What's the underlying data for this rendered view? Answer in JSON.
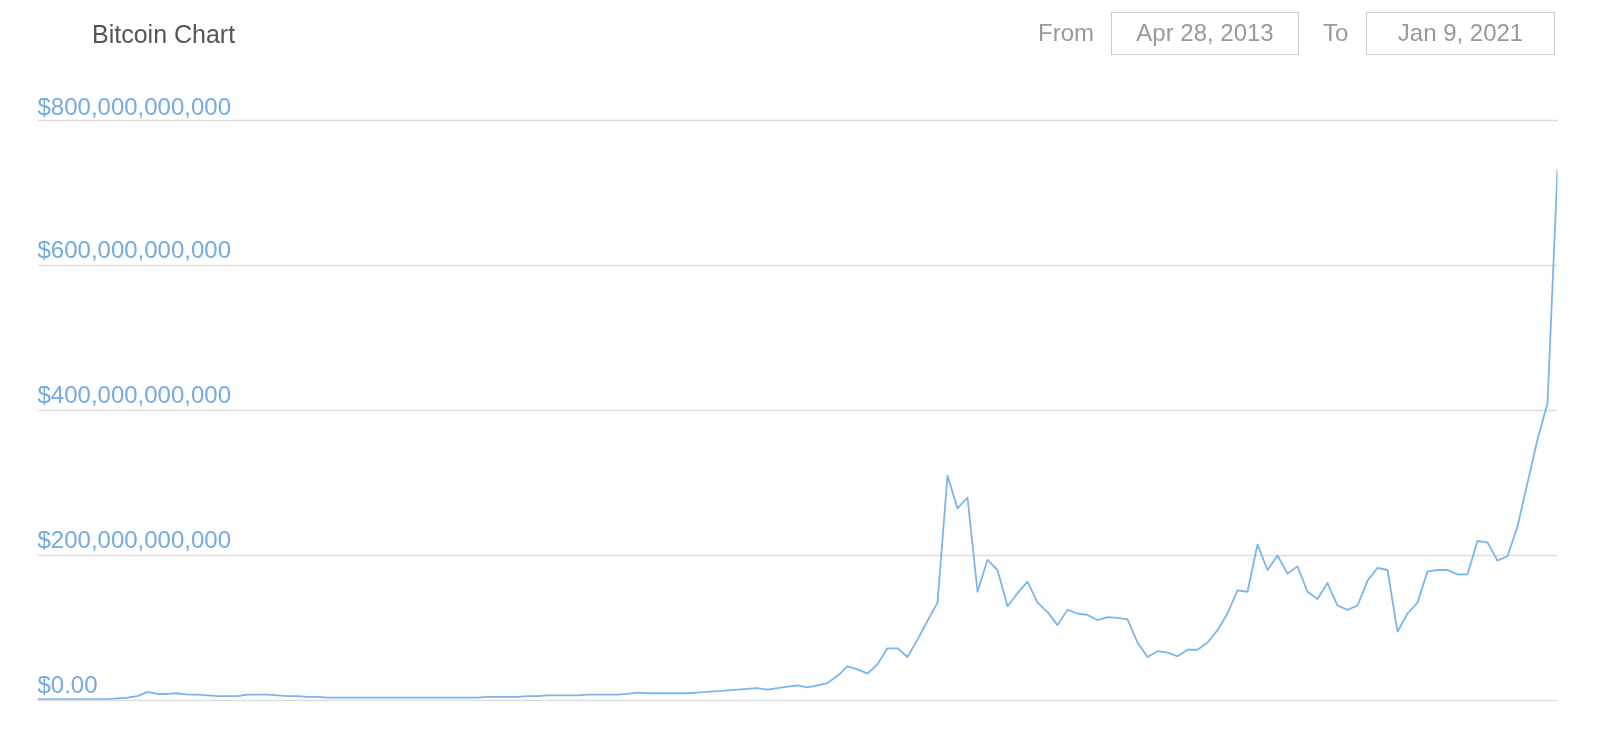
{
  "chart_data": {
    "type": "line",
    "title": "Bitcoin Chart",
    "annotations": [
      "From",
      "Apr 28, 2013",
      "To",
      "Jan 9, 2021"
    ],
    "categories": [
      null,
      null,
      null,
      null,
      null,
      null,
      null,
      null,
      null,
      null,
      null,
      null,
      null,
      null,
      null,
      null,
      null,
      null,
      null,
      null,
      null,
      null,
      null,
      null,
      null,
      null,
      null,
      null,
      null,
      null,
      null,
      null,
      null,
      null,
      null,
      null,
      null,
      null,
      null,
      null,
      null,
      null,
      null,
      null,
      null,
      null,
      null,
      null,
      null,
      null,
      null,
      null,
      null,
      null,
      null,
      null,
      null,
      null,
      null,
      null,
      null,
      null,
      null,
      null,
      null,
      null,
      null,
      null,
      null,
      null,
      null,
      null,
      null,
      null,
      null,
      null,
      null,
      null,
      null,
      null,
      null,
      null,
      null,
      null,
      null,
      null,
      null,
      null,
      null,
      null,
      null,
      null,
      null,
      null,
      null,
      null,
      null,
      null,
      null,
      null,
      null,
      null,
      null,
      null,
      null,
      null,
      null,
      null,
      null,
      null,
      null,
      null,
      null,
      null,
      null,
      null,
      null,
      null,
      null,
      null,
      null,
      null,
      null,
      null,
      null,
      null,
      null,
      null,
      null,
      null,
      null,
      null,
      null,
      null,
      null,
      null,
      null,
      null,
      null,
      null,
      null,
      null,
      null,
      null,
      null,
      null,
      null,
      null,
      null,
      null,
      null,
      null,
      null
    ],
    "series": [
      {
        "color": "#7cb5ec",
        "values": [
          2000000000.0,
          2000000000.0,
          2000000000.0,
          2000000000.0,
          2000000000.0,
          2000000000.0,
          2000000000.0,
          2000000000.0,
          3000000000.0,
          4000000000.0,
          6000000000.0,
          12000000000.0,
          9000000000.0,
          9000000000.0,
          10000000000.0,
          8000000000.0,
          8000000000.0,
          7000000000.0,
          6000000000.0,
          6000000000.0,
          6000000000.0,
          8000000000.0,
          8000000000.0,
          8000000000.0,
          7000000000.0,
          6000000000.0,
          6000000000.0,
          5000000000.0,
          5000000000.0,
          4000000000.0,
          4000000000.0,
          4000000000.0,
          4000000000.0,
          4000000000.0,
          4000000000.0,
          4000000000.0,
          4000000000.0,
          4000000000.0,
          4000000000.0,
          4000000000.0,
          4000000000.0,
          4000000000.0,
          4000000000.0,
          4000000000.0,
          4000000000.0,
          5000000000.0,
          5000000000.0,
          5000000000.0,
          5000000000.0,
          6000000000.0,
          6000000000.0,
          7000000000.0,
          7000000000.0,
          7000000000.0,
          7000000000.0,
          8000000000.0,
          8000000000.0,
          8000000000.0,
          8000000000.0,
          9000000000.0,
          11000000000.0,
          10000000000.0,
          10000000000.0,
          10000000000.0,
          10000000000.0,
          10000000000.0,
          11000000000.0,
          12000000000.0,
          13000000000.0,
          14000000000.0,
          15000000000.0,
          16000000000.0,
          17000000000.0,
          15000000000.0,
          17000000000.0,
          19000000000.0,
          21000000000.0,
          18000000000.0,
          21000000000.0,
          24000000000.0,
          34000000000.0,
          47000000000.0,
          43000000000.0,
          37000000000.0,
          50000000000.0,
          72000000000.0,
          72000000000.0,
          60000000000.0,
          84000000000.0,
          110000000000.0,
          135000000000.0,
          310000000000.0,
          265000000000.0,
          280000000000.0,
          150000000000.0,
          194000000000.0,
          180000000000.0,
          130000000000.0,
          148000000000.0,
          164000000000.0,
          135000000000.0,
          122000000000.0,
          104000000000.0,
          125000000000.0,
          120000000000.0,
          118000000000.0,
          111000000000.0,
          115000000000.0,
          114000000000.0,
          112000000000.0,
          80000000000.0,
          60000000000.0,
          68000000000.0,
          66000000000.0,
          61000000000.0,
          70000000000.0,
          70000000000.0,
          80000000000.0,
          97000000000.0,
          120000000000.0,
          152000000000.0,
          150000000000.0,
          215000000000.0,
          180000000000.0,
          200000000000.0,
          175000000000.0,
          185000000000.0,
          150000000000.0,
          140000000000.0,
          162000000000.0,
          131000000000.0,
          125000000000.0,
          131000000000.0,
          165000000000.0,
          183000000000.0,
          180000000000.0,
          95000000000.0,
          120000000000.0,
          135000000000.0,
          178000000000.0,
          180000000000.0,
          180000000000.0,
          174000000000.0,
          174000000000.0,
          220000000000.0,
          218000000000.0,
          193000000000.0,
          199000000000.0,
          240000000000.0,
          300000000000.0,
          360000000000.0,
          410000000000.0,
          733000000000.0
        ]
      }
    ],
    "ylim": [
      0,
      800000000000
    ],
    "yticks": [
      {
        "value": 0,
        "label": "$0.00"
      },
      {
        "value": 200000000000,
        "label": "$200,000,000,000"
      },
      {
        "value": 400000000000,
        "label": "$400,000,000,000"
      },
      {
        "value": 600000000000,
        "label": "$600,000,000,000"
      },
      {
        "value": 800000000000,
        "label": "$800,000,000,000"
      }
    ],
    "grid": "y",
    "tick_labels": "y"
  }
}
